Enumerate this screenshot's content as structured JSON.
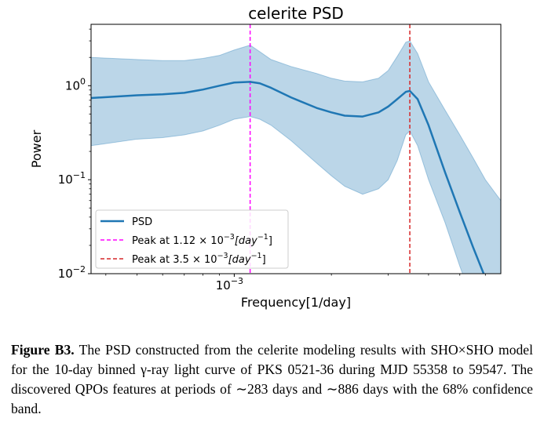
{
  "chart_data": {
    "type": "line",
    "title": "celerite PSD",
    "xlabel": "Frequency[1/day]",
    "ylabel": "Power",
    "x_scale": "log",
    "y_scale": "log",
    "xlim": [
      0.00036,
      0.0067
    ],
    "ylim": [
      0.01,
      4.5
    ],
    "x_tick_labels": [
      {
        "value": 0.001,
        "base": "10",
        "exp": "−3"
      }
    ],
    "y_tick_labels": [
      {
        "value": 1,
        "base": "10",
        "exp": "0"
      },
      {
        "value": 0.1,
        "base": "10",
        "exp": "−1"
      },
      {
        "value": 0.01,
        "base": "10",
        "exp": "−2"
      }
    ],
    "grid": false,
    "legend_position": "lower-left",
    "series": [
      {
        "name": "PSD",
        "color": "#1f77b4",
        "x": [
          0.00036,
          0.0005,
          0.0006,
          0.0007,
          0.0008,
          0.0009,
          0.001,
          0.00112,
          0.0012,
          0.0013,
          0.0015,
          0.0018,
          0.002,
          0.0022,
          0.0025,
          0.0028,
          0.003,
          0.0032,
          0.0034,
          0.0035,
          0.0037,
          0.004,
          0.0045,
          0.005,
          0.0055,
          0.006,
          0.0063
        ],
        "y": [
          0.74,
          0.79,
          0.81,
          0.84,
          0.91,
          1.0,
          1.08,
          1.1,
          1.06,
          0.95,
          0.75,
          0.58,
          0.52,
          0.48,
          0.47,
          0.52,
          0.6,
          0.72,
          0.86,
          0.88,
          0.72,
          0.38,
          0.12,
          0.045,
          0.019,
          0.009,
          0.0062
        ]
      }
    ],
    "confidence_band": {
      "label": "68% confidence band",
      "color": "#1f77b4",
      "x": [
        0.00036,
        0.0005,
        0.0006,
        0.0007,
        0.0008,
        0.0009,
        0.001,
        0.00112,
        0.0012,
        0.0013,
        0.0015,
        0.0018,
        0.002,
        0.0022,
        0.0025,
        0.0028,
        0.003,
        0.0032,
        0.0034,
        0.0035,
        0.0037,
        0.004,
        0.0045,
        0.005,
        0.0055,
        0.006,
        0.0067
      ],
      "upper": [
        2.0,
        1.9,
        1.85,
        1.85,
        1.95,
        2.1,
        2.4,
        2.7,
        2.3,
        1.9,
        1.6,
        1.35,
        1.2,
        1.12,
        1.1,
        1.2,
        1.45,
        2.05,
        2.9,
        3.0,
        2.2,
        1.1,
        0.55,
        0.3,
        0.17,
        0.1,
        0.06
      ],
      "lower": [
        0.23,
        0.27,
        0.28,
        0.3,
        0.33,
        0.38,
        0.44,
        0.47,
        0.44,
        0.38,
        0.26,
        0.15,
        0.11,
        0.085,
        0.07,
        0.08,
        0.1,
        0.16,
        0.3,
        0.33,
        0.23,
        0.1,
        0.035,
        0.012,
        0.005,
        0.0025,
        0.001
      ]
    },
    "vertical_lines": [
      {
        "x": 0.00112,
        "color": "#ff00ff",
        "style": "dashed",
        "label_text": "Peak at 1.12 × 10",
        "label_exp": "−3",
        "label_unit": "[day",
        "label_unit_exp": "−1",
        "label_close": "]"
      },
      {
        "x": 0.0035,
        "color": "#d62728",
        "style": "dashed",
        "label_text": "Peak at 3.5 × 10",
        "label_exp": "−3",
        "label_unit": "[day",
        "label_unit_exp": "−1",
        "label_close": "]"
      }
    ]
  },
  "caption": {
    "label": "Figure B3.",
    "text": " The PSD constructed from the celerite modeling results with SHO×SHO model for the 10-day binned γ-ray light curve of PKS 0521-36 during MJD 55358 to 59547. The discovered QPOs features at periods of ∼283 days and ∼886 days with the 68% confidence band."
  }
}
